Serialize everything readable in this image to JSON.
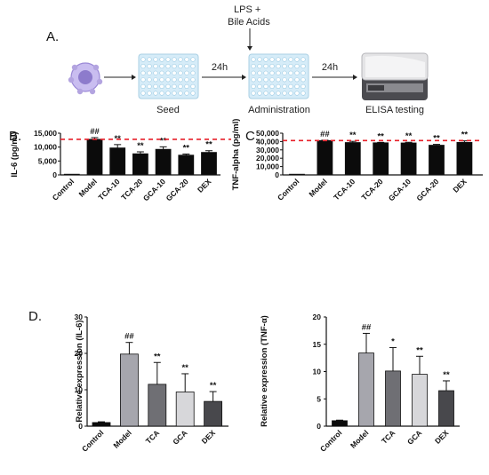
{
  "panels": {
    "a": "A.",
    "b": "B.",
    "c": "C.",
    "d": "D."
  },
  "workflow": {
    "steps": [
      "Seed",
      "Administration",
      "ELISA testing"
    ],
    "arrow_labels": [
      "24h",
      "24h"
    ],
    "treatment": [
      "LPS +",
      "Bile Acids"
    ]
  },
  "colors": {
    "bar_black": "#0b0b0b",
    "model_gray": "#a6a6ad",
    "tca_gray": "#6f6f74",
    "gca_light": "#d7d7da",
    "dex_dark": "#48484c",
    "reference_line": "#e8202a",
    "plate": "#d6ecf8",
    "cell": "#b3a4e0"
  },
  "icons": [
    "cell-icon",
    "well-plate-icon",
    "elisa-reader-icon"
  ],
  "chart_data": [
    {
      "id": "B",
      "type": "bar",
      "categories": [
        "Control",
        "Model",
        "TCA-10",
        "TCA-20",
        "GCA-10",
        "GCA-20",
        "DEX"
      ],
      "values": [
        0,
        12800,
        9700,
        7600,
        9200,
        7100,
        8100
      ],
      "errors": [
        0,
        600,
        1200,
        700,
        900,
        400,
        600
      ],
      "annotations": [
        "",
        "##",
        "**",
        "**",
        "**",
        "**",
        "**"
      ],
      "ylabel": "IL-6 (pg/ml)",
      "yticks": [
        "0",
        "5,000",
        "10,000",
        "15,000"
      ],
      "ylim": [
        0,
        15000
      ],
      "reference_line": 12800,
      "grid": false
    },
    {
      "id": "C",
      "type": "bar",
      "categories": [
        "Control",
        "Model",
        "TCA-10",
        "TCA-20",
        "GCA-10",
        "GCA-20",
        "DEX"
      ],
      "values": [
        300,
        41200,
        38800,
        38500,
        38300,
        35600,
        39000
      ],
      "errors": [
        0,
        400,
        1400,
        500,
        800,
        1000,
        1800
      ],
      "annotations": [
        "",
        "##",
        "**",
        "**",
        "**",
        "**",
        "**"
      ],
      "ylabel": "TNF-alpha (pg/ml)",
      "yticks": [
        "0",
        "10,000",
        "20,000",
        "30,000",
        "40,000",
        "50,000"
      ],
      "ylim": [
        0,
        50000
      ],
      "reference_line": 41200,
      "grid": false
    },
    {
      "id": "D1",
      "type": "bar",
      "categories": [
        "Control",
        "Model",
        "TCA",
        "GCA",
        "DEX"
      ],
      "values": [
        1,
        19.8,
        11.5,
        9.4,
        6.8
      ],
      "errors": [
        0.2,
        3.2,
        6,
        5,
        2.7
      ],
      "annotations": [
        "",
        "##",
        "**",
        "**",
        "**"
      ],
      "ylabel": "Relative expression (IL-6)",
      "yticks": [
        "0",
        "10",
        "20",
        "30"
      ],
      "ylim": [
        0,
        30
      ],
      "grid": false
    },
    {
      "id": "D2",
      "type": "bar",
      "categories": [
        "Control",
        "Model",
        "TCA",
        "GCA",
        "DEX"
      ],
      "values": [
        1,
        13.4,
        10.1,
        9.5,
        6.5
      ],
      "errors": [
        0.1,
        3.6,
        4.3,
        3.3,
        1.8
      ],
      "annotations": [
        "",
        "##",
        "*",
        "**",
        "**"
      ],
      "ylabel": "Relative expression (TNF-α)",
      "yticks": [
        "0",
        "5",
        "10",
        "15",
        "20"
      ],
      "ylim": [
        0,
        20
      ],
      "grid": false
    }
  ]
}
